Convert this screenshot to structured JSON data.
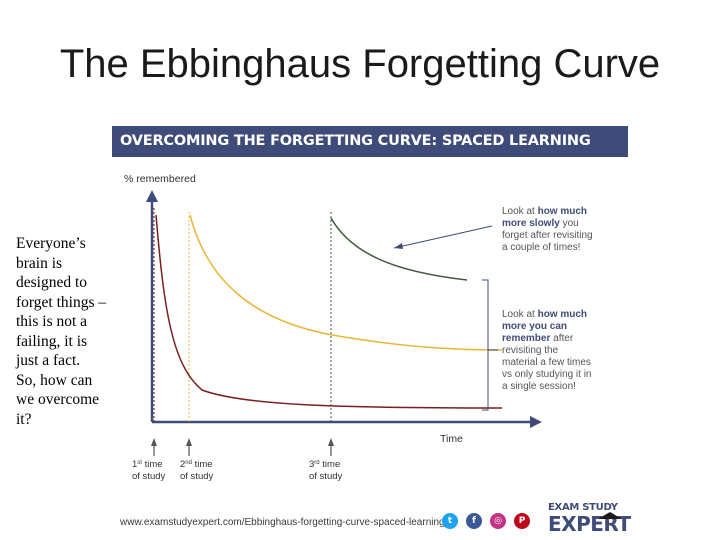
{
  "slide": {
    "title": "The Ebbinghaus Forgetting Curve",
    "side_text_lines": [
      "Everyone’s",
      "brain is",
      "designed to",
      "forget things –",
      "this is not a",
      "failing, it is",
      "just a fact.",
      "So, how can",
      "we overcome",
      "it?"
    ]
  },
  "figure": {
    "banner": "OVERCOMING THE FORGETTING CURVE: SPACED LEARNING",
    "y_axis_label": "% remembered",
    "x_axis_label": "Time",
    "study_markers": [
      {
        "sup": "st",
        "line1": "1",
        "line1_rest": " time",
        "line2": "of study"
      },
      {
        "sup": "nd",
        "line1": "2",
        "line1_rest": " time",
        "line2": "of study"
      },
      {
        "sup": "rd",
        "line1": "3",
        "line1_rest": " time",
        "line2": "of study"
      }
    ],
    "note_top": {
      "lines": [
        {
          "pre": "Look at ",
          "bold": "how much",
          "post": ""
        },
        {
          "pre": "",
          "bold": "more slowly",
          "post": " you"
        },
        {
          "pre": "forget after revisiting",
          "bold": "",
          "post": ""
        },
        {
          "pre": "a couple of times!",
          "bold": "",
          "post": ""
        }
      ]
    },
    "note_bottom": {
      "lines": [
        {
          "pre": "Look at ",
          "bold": "how much",
          "post": ""
        },
        {
          "pre": "",
          "bold": "more you can",
          "post": ""
        },
        {
          "pre": "",
          "bold": "remember",
          "post": " after"
        },
        {
          "pre": "revisiting the",
          "bold": "",
          "post": ""
        },
        {
          "pre": "material a few times",
          "bold": "",
          "post": ""
        },
        {
          "pre": "vs only studying it in",
          "bold": "",
          "post": ""
        },
        {
          "pre": "a single session!",
          "bold": "",
          "post": ""
        }
      ]
    },
    "curve_colors": {
      "first": "#7a1f1f",
      "second": "#e8b73a",
      "third": "#3e5a3a",
      "axis": "#3f4c79",
      "marker": "#555555"
    }
  },
  "footer": {
    "url": "www.examstudyexpert.com/Ebbinghaus-forgetting-curve-spaced-learning",
    "social": [
      {
        "name": "twitter-icon",
        "glyph": "t",
        "color": "#1da1f2"
      },
      {
        "name": "facebook-icon",
        "glyph": "f",
        "color": "#3b5998"
      },
      {
        "name": "instagram-icon",
        "glyph": "◎",
        "color": "#c13584"
      },
      {
        "name": "pinterest-icon",
        "glyph": "P",
        "color": "#bd081c"
      }
    ],
    "logo_top": "EXAM STUDY",
    "logo_big": "EXPERT"
  }
}
